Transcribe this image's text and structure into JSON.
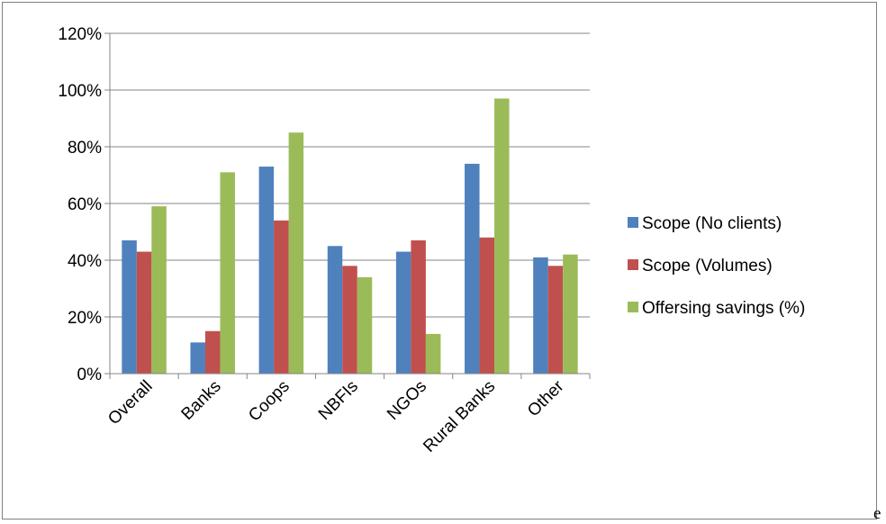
{
  "chart_data": {
    "type": "bar",
    "categories": [
      "Overall",
      "Banks",
      "Coops",
      "NBFIs",
      "NGOs",
      "Rural Banks",
      "Other"
    ],
    "series": [
      {
        "name": "Scope (No clients)",
        "color": "#4f81bd",
        "values": [
          0.47,
          0.11,
          0.73,
          0.45,
          0.43,
          0.74,
          0.41
        ]
      },
      {
        "name": "Scope (Volumes)",
        "color": "#c0504d",
        "values": [
          0.43,
          0.15,
          0.54,
          0.38,
          0.47,
          0.48,
          0.38
        ]
      },
      {
        "name": "Offersing savings (%)",
        "color": "#9bbb59",
        "values": [
          0.59,
          0.71,
          0.85,
          0.34,
          0.14,
          0.97,
          0.42
        ]
      }
    ],
    "y_ticks": [
      "0%",
      "20%",
      "40%",
      "60%",
      "80%",
      "100%",
      "120%"
    ],
    "ylim": [
      0,
      1.2
    ],
    "y_format": "percent",
    "grid": true,
    "legend_position": "right",
    "title": "",
    "xlabel": "",
    "ylabel": ""
  },
  "stray_text": "e"
}
